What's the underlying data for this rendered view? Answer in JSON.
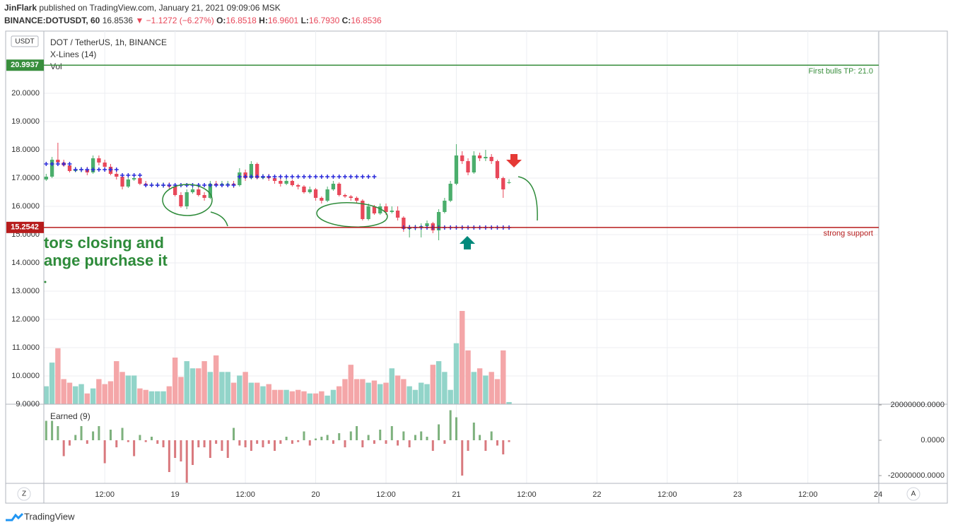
{
  "header": {
    "publisher": "JinFlark",
    "published": "published on TradingView.com, January 21, 2021 09:09:06 MSK",
    "symbol": "BINANCE:DOTUSDT, 60",
    "last": "16.8536",
    "arrow": "▼",
    "change": "−1.1272 (−6.27%)",
    "o_label": "O:",
    "o": "16.8518",
    "h_label": "H:",
    "h": "16.9601",
    "l_label": "L:",
    "l": "16.7930",
    "c_label": "C:",
    "c": "16.8536"
  },
  "legend": {
    "main": "DOT / TetherUS, 1h, BINANCE",
    "xlines": "X-Lines (14)",
    "vol": "Vol",
    "earned": "Earned (9)",
    "currency": "USDT"
  },
  "annotations": [
    "tors closing and",
    "ange purchase it"
  ],
  "buttons": {
    "left": "Z",
    "right": "A"
  },
  "footer": "TradingView",
  "chart_data": {
    "type": "candlestick",
    "up_color": "#4bae6c",
    "down_color": "#e8485a",
    "vol_up_color": "#92d4c9",
    "vol_down_color": "#f4a6a8",
    "xline_color": "#2b2bdb",
    "grid": true,
    "xlim": [
      1.6,
      144.1
    ],
    "xticks": [
      {
        "value": 12,
        "label": "12:00"
      },
      {
        "value": 24,
        "label": "19"
      },
      {
        "value": 36,
        "label": "12:00"
      },
      {
        "value": 48,
        "label": "20"
      },
      {
        "value": 60,
        "label": "12:00"
      },
      {
        "value": 72,
        "label": "21"
      },
      {
        "value": 84,
        "label": "12:00"
      },
      {
        "value": 96,
        "label": "22"
      },
      {
        "value": 108,
        "label": "12:00"
      },
      {
        "value": 120,
        "label": "23"
      },
      {
        "value": 132,
        "label": "12:00"
      },
      {
        "value": 144,
        "label": "24"
      }
    ],
    "ylim": [
      9.0,
      22.2
    ],
    "yticks": [
      {
        "value": 9,
        "label": "9.0000"
      },
      {
        "value": 10,
        "label": "10.0000"
      },
      {
        "value": 11,
        "label": "11.0000"
      },
      {
        "value": 12,
        "label": "12.0000"
      },
      {
        "value": 13,
        "label": "13.0000"
      },
      {
        "value": 14,
        "label": "14.0000"
      },
      {
        "value": 15,
        "label": "15.0000"
      },
      {
        "value": 16,
        "label": "16.0000"
      },
      {
        "value": 17,
        "label": "17.0000"
      },
      {
        "value": 18,
        "label": "18.0000"
      },
      {
        "value": 19,
        "label": "19.0000"
      },
      {
        "value": 20,
        "label": "20.0000"
      }
    ],
    "levels": [
      {
        "value": 20.9937,
        "color": "#388e3c",
        "text": "First bulls TP: 21.0"
      },
      {
        "value": 15.2542,
        "color": "#b71c1c",
        "text": "strong support"
      }
    ],
    "x": [
      2,
      3,
      4,
      5,
      6,
      7,
      8,
      9,
      10,
      11,
      12,
      13,
      14,
      15,
      16,
      17,
      18,
      19,
      20,
      21,
      22,
      23,
      24,
      25,
      26,
      27,
      28,
      29,
      30,
      31,
      32,
      33,
      34,
      35,
      36,
      37,
      38,
      39,
      40,
      41,
      42,
      43,
      44,
      45,
      46,
      47,
      48,
      49,
      50,
      51,
      52,
      53,
      54,
      55,
      56,
      57,
      58,
      59,
      60,
      61,
      62,
      63,
      64,
      65,
      66,
      67,
      68,
      69,
      70,
      71,
      72,
      73,
      74,
      75,
      76,
      77,
      78,
      79,
      80,
      81
    ],
    "open": [
      16.95,
      17.05,
      17.65,
      17.55,
      17.45,
      17.25,
      17.3,
      17.3,
      17.2,
      17.7,
      17.55,
      17.4,
      17.15,
      17.05,
      16.7,
      16.95,
      17.0,
      16.8,
      16.75,
      16.75,
      16.75,
      16.75,
      16.7,
      16.4,
      16.0,
      16.5,
      16.6,
      16.4,
      16.3,
      16.8,
      16.75,
      16.8,
      16.8,
      16.75,
      17.2,
      17.0,
      17.5,
      17.0,
      17.05,
      17.0,
      16.9,
      16.8,
      16.9,
      16.75,
      16.7,
      16.5,
      16.6,
      16.3,
      16.2,
      16.6,
      16.8,
      16.4,
      16.35,
      16.3,
      16.2,
      15.55,
      16.0,
      15.75,
      16.0,
      15.8,
      15.85,
      15.6,
      15.2,
      15.25,
      15.25,
      15.3,
      15.4,
      15.15,
      15.8,
      16.2,
      16.8,
      17.8,
      17.6,
      17.2,
      17.8,
      17.7,
      17.75,
      17.6,
      17.0,
      16.8518
    ],
    "high": [
      17.15,
      17.75,
      18.25,
      17.65,
      17.55,
      17.4,
      17.4,
      17.4,
      17.8,
      17.8,
      17.65,
      17.5,
      17.25,
      17.1,
      17.05,
      17.1,
      17.05,
      16.9,
      16.85,
      16.85,
      16.85,
      16.85,
      16.8,
      16.5,
      16.6,
      16.7,
      16.7,
      16.5,
      16.9,
      16.9,
      16.9,
      16.9,
      16.9,
      17.35,
      17.3,
      17.6,
      17.55,
      17.15,
      17.15,
      17.05,
      17.0,
      17.0,
      16.95,
      16.8,
      16.75,
      16.7,
      16.65,
      16.35,
      16.7,
      16.9,
      16.85,
      16.45,
      16.4,
      16.35,
      16.25,
      16.1,
      16.05,
      16.1,
      16.1,
      16.0,
      16.0,
      15.65,
      15.35,
      15.35,
      15.4,
      15.5,
      15.45,
      15.9,
      16.3,
      16.9,
      18.2,
      17.95,
      17.7,
      17.95,
      17.9,
      18.0,
      17.85,
      17.65,
      17.05,
      16.9601
    ],
    "low": [
      16.9,
      17.0,
      17.45,
      17.4,
      17.2,
      17.2,
      17.2,
      17.1,
      17.15,
      17.45,
      17.35,
      17.1,
      16.95,
      16.6,
      16.65,
      16.9,
      16.75,
      16.7,
      16.7,
      16.7,
      16.65,
      16.6,
      16.35,
      15.95,
      15.9,
      16.45,
      16.35,
      16.2,
      16.25,
      16.7,
      16.7,
      16.7,
      16.65,
      16.7,
      16.9,
      16.95,
      16.95,
      16.95,
      16.9,
      16.8,
      16.7,
      16.75,
      16.7,
      16.6,
      16.45,
      16.45,
      16.2,
      16.1,
      16.15,
      16.55,
      16.35,
      16.3,
      16.2,
      16.1,
      15.5,
      15.5,
      15.7,
      15.7,
      15.7,
      15.75,
      15.5,
      15.1,
      14.9,
      15.15,
      14.9,
      15.2,
      15.05,
      14.8,
      15.75,
      16.15,
      16.75,
      17.5,
      17.1,
      17.15,
      17.6,
      17.6,
      17.5,
      16.95,
      16.3,
      16.793
    ],
    "close": [
      17.05,
      17.65,
      17.55,
      17.45,
      17.25,
      17.3,
      17.3,
      17.2,
      17.7,
      17.55,
      17.4,
      17.15,
      17.05,
      16.7,
      16.95,
      17.0,
      16.8,
      16.75,
      16.75,
      16.75,
      16.75,
      16.7,
      16.4,
      16.0,
      16.5,
      16.6,
      16.4,
      16.3,
      16.8,
      16.75,
      16.8,
      16.8,
      16.75,
      17.2,
      17.0,
      17.5,
      17.0,
      17.05,
      17.0,
      16.9,
      16.8,
      16.9,
      16.75,
      16.7,
      16.5,
      16.6,
      16.3,
      16.2,
      16.6,
      16.8,
      16.4,
      16.35,
      16.3,
      16.2,
      15.55,
      16.0,
      15.75,
      16.0,
      15.8,
      15.85,
      15.6,
      15.2,
      15.25,
      15.25,
      15.3,
      15.4,
      15.15,
      15.8,
      16.2,
      16.8,
      17.8,
      17.6,
      17.2,
      17.8,
      17.7,
      17.75,
      17.6,
      17.0,
      16.6,
      16.8536
    ],
    "volume": [
      25,
      58,
      78,
      35,
      30,
      25,
      28,
      15,
      22,
      35,
      28,
      32,
      60,
      45,
      40,
      40,
      22,
      20,
      18,
      18,
      18,
      25,
      65,
      38,
      60,
      50,
      50,
      60,
      45,
      68,
      45,
      45,
      30,
      40,
      45,
      30,
      30,
      25,
      28,
      20,
      20,
      20,
      18,
      20,
      18,
      15,
      15,
      18,
      12,
      20,
      25,
      35,
      55,
      35,
      35,
      30,
      33,
      28,
      30,
      50,
      40,
      35,
      25,
      20,
      30,
      28,
      55,
      60,
      45,
      20,
      85,
      130,
      75,
      45,
      50,
      40,
      45,
      35,
      75,
      3
    ],
    "xlines": [
      17.5,
      17.5,
      17.5,
      17.5,
      17.5,
      17.3,
      17.3,
      17.3,
      17.3,
      17.3,
      17.3,
      17.3,
      17.3,
      17.1,
      17.1,
      17.1,
      17.1,
      16.75,
      16.75,
      16.75,
      16.75,
      16.75,
      16.75,
      16.75,
      16.75,
      16.75,
      16.75,
      16.75,
      16.75,
      16.75,
      16.75,
      16.75,
      16.75,
      17.05,
      17.05,
      17.05,
      17.05,
      17.05,
      17.05,
      17.05,
      17.05,
      17.05,
      17.05,
      17.05,
      17.05,
      17.05,
      17.05,
      17.05,
      17.05,
      17.05,
      17.05,
      17.05,
      17.05,
      17.05,
      17.05,
      17.05,
      17.05,
      null,
      null,
      null,
      null,
      15.25,
      15.25,
      15.25,
      15.25,
      15.25,
      15.25,
      15.25,
      15.25,
      15.25,
      15.25,
      15.25,
      15.25,
      15.25,
      15.25,
      15.25,
      15.25,
      15.25,
      15.25,
      15.25
    ],
    "earned": [
      11000000,
      11000000,
      8000000,
      -9000000,
      -3000000,
      3000000,
      8000000,
      -2000000,
      5000000,
      8000000,
      -13000000,
      6000000,
      -4000000,
      7000000,
      -1000000,
      -9000000,
      3000000,
      -1000000,
      2000000,
      -2000000,
      -4000000,
      -18000000,
      -10000000,
      -12000000,
      -24000000,
      -14000000,
      -4000000,
      -4000000,
      -10000000,
      -2000000,
      -6000000,
      -10000000,
      7000000,
      -3000000,
      -4000000,
      -6000000,
      -2000000,
      -4000000,
      -2000000,
      -6000000,
      -2000000,
      2000000,
      -2000000,
      -1000000,
      5000000,
      -3000000,
      1000000,
      2000000,
      3000000,
      -2000000,
      4000000,
      -4000000,
      5000000,
      8000000,
      -4000000,
      3000000,
      -2000000,
      6000000,
      -2000000,
      8000000,
      -3000000,
      5000000,
      -4000000,
      3000000,
      5000000,
      2000000,
      -6000000,
      9000000,
      -2000000,
      17000000,
      13000000,
      -20000000,
      -6000000,
      10000000,
      3000000,
      -6000000,
      5000000,
      -3000000,
      -8000000,
      -1000000
    ],
    "earned_pos_color": "#7db17d",
    "earned_neg_color": "#d9797e",
    "elim": [
      -24400000,
      20400000
    ],
    "eticks": [
      {
        "value": 20000000,
        "label": "20000000.0000"
      },
      {
        "value": 0,
        "label": "0.0000"
      },
      {
        "value": -20000000,
        "label": "-20000000.0000"
      }
    ]
  }
}
